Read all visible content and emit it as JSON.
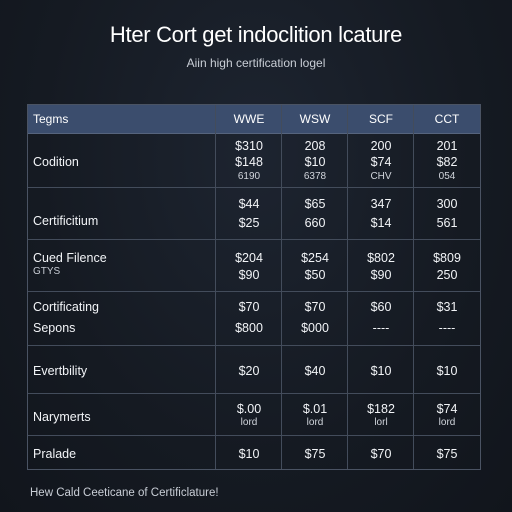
{
  "header": {
    "title": "Hter Cort get indoclition lcature",
    "subtitle": "Aiin high certification logel"
  },
  "table": {
    "columns": [
      "Tegms",
      "WWE",
      "WSW",
      "SCF",
      "CCT"
    ],
    "rows": [
      {
        "label": "Codition",
        "cells": [
          [
            "$310",
            "$148",
            "6190"
          ],
          [
            "208",
            "$10",
            "6378"
          ],
          [
            "200",
            "$74",
            "CHV"
          ],
          [
            "201",
            "$82",
            "054"
          ]
        ]
      },
      {
        "label": "Certificitium",
        "cells": [
          [
            "$44",
            "$25"
          ],
          [
            "$65",
            "660"
          ],
          [
            "347",
            "$14"
          ],
          [
            "300",
            "561"
          ]
        ]
      },
      {
        "label": "Cued Filence",
        "sublabel": "GTYS",
        "cells": [
          [
            "$204",
            "$90"
          ],
          [
            "$254",
            "$50"
          ],
          [
            "$802",
            "$90"
          ],
          [
            "$809",
            "250"
          ]
        ]
      },
      {
        "label": "Cortificating",
        "label2": "Sepons",
        "cells": [
          [
            "$70",
            "$800"
          ],
          [
            "$70",
            "$000"
          ],
          [
            "$60",
            "----"
          ],
          [
            "$31",
            "----"
          ]
        ]
      },
      {
        "label": "Evertbility",
        "cells": [
          [
            "$20"
          ],
          [
            "$40"
          ],
          [
            "$10"
          ],
          [
            "$10"
          ]
        ]
      },
      {
        "label": "Narymerts",
        "cells": [
          [
            "$.00",
            "lord"
          ],
          [
            "$.01",
            "lord"
          ],
          [
            "$182",
            "lorl"
          ],
          [
            "$74",
            "lord"
          ]
        ]
      },
      {
        "label": "Pralade",
        "cells": [
          [
            "$10"
          ],
          [
            "$75"
          ],
          [
            "$70"
          ],
          [
            "$75"
          ]
        ]
      }
    ]
  },
  "footer": {
    "text": "Hew Cald Ceeticane of Certificlature!"
  }
}
